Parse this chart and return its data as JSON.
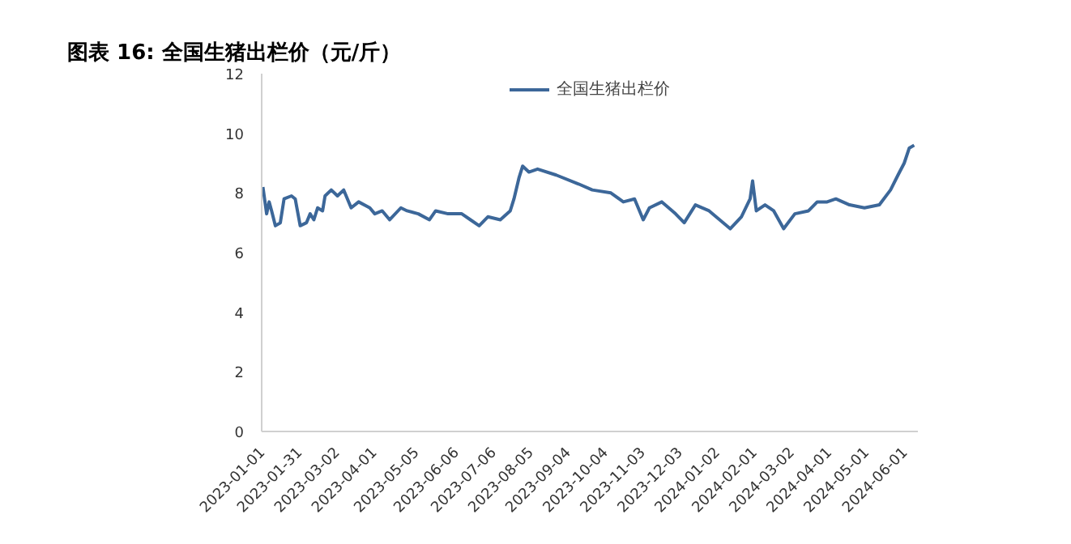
{
  "chart_data": {
    "type": "line",
    "title": "图表 16:  全国生猪出栏价（元/斤）",
    "x": [
      "2023-01-02",
      "2023-01-05",
      "2023-01-07",
      "2023-01-09",
      "2023-01-12",
      "2023-01-16",
      "2023-01-19",
      "2023-01-25",
      "2023-01-28",
      "2023-02-01",
      "2023-02-06",
      "2023-02-09",
      "2023-02-12",
      "2023-02-15",
      "2023-02-19",
      "2023-02-21",
      "2023-02-26",
      "2023-03-03",
      "2023-03-08",
      "2023-03-14",
      "2023-03-20",
      "2023-03-29",
      "2023-04-02",
      "2023-04-08",
      "2023-04-14",
      "2023-04-23",
      "2023-04-28",
      "2023-05-07",
      "2023-05-16",
      "2023-05-21",
      "2023-05-31",
      "2023-06-11",
      "2023-06-18",
      "2023-06-25",
      "2023-07-02",
      "2023-07-12",
      "2023-07-20",
      "2023-07-23",
      "2023-07-27",
      "2023-07-30",
      "2023-08-04",
      "2023-08-11",
      "2023-08-26",
      "2023-09-13",
      "2023-09-24",
      "2023-10-09",
      "2023-10-19",
      "2023-10-28",
      "2023-11-04",
      "2023-11-09",
      "2023-11-19",
      "2023-11-30",
      "2023-12-07",
      "2023-12-16",
      "2023-12-27",
      "2024-01-13",
      "2024-01-22",
      "2024-01-29",
      "2024-01-31",
      "2024-02-03",
      "2024-02-10",
      "2024-02-17",
      "2024-02-25",
      "2024-03-05",
      "2024-03-16",
      "2024-03-23",
      "2024-03-31",
      "2024-04-07",
      "2024-04-18",
      "2024-04-30",
      "2024-05-12",
      "2024-05-21",
      "2024-05-27",
      "2024-06-01",
      "2024-06-05",
      "2024-06-09"
    ],
    "series": [
      {
        "name": "全国生猪出栏价",
        "color": "#3c6799",
        "values": [
          8.2,
          7.3,
          7.7,
          7.4,
          6.9,
          7.0,
          7.8,
          7.9,
          7.8,
          6.9,
          7.0,
          7.3,
          7.1,
          7.5,
          7.4,
          7.9,
          8.1,
          7.9,
          8.1,
          7.5,
          7.7,
          7.5,
          7.3,
          7.4,
          7.1,
          7.5,
          7.4,
          7.3,
          7.1,
          7.4,
          7.3,
          7.3,
          7.1,
          6.9,
          7.2,
          7.1,
          7.4,
          7.8,
          8.5,
          8.9,
          8.7,
          8.8,
          8.6,
          8.3,
          8.1,
          8.0,
          7.7,
          7.8,
          7.1,
          7.5,
          7.7,
          7.3,
          7.0,
          7.6,
          7.4,
          6.8,
          7.2,
          7.8,
          8.4,
          7.4,
          7.6,
          7.4,
          6.8,
          7.3,
          7.4,
          7.7,
          7.7,
          7.8,
          7.6,
          7.5,
          7.6,
          8.1,
          8.6,
          9.0,
          9.5,
          9.6
        ]
      }
    ],
    "xlim": [
      "2023-01-01",
      "2024-06-12"
    ],
    "xticks": [
      "2023-01-01",
      "2023-01-31",
      "2023-03-02",
      "2023-04-01",
      "2023-05-05",
      "2023-06-06",
      "2023-07-06",
      "2023-08-05",
      "2023-09-04",
      "2023-10-04",
      "2023-11-03",
      "2023-12-03",
      "2024-01-02",
      "2024-02-01",
      "2024-03-02",
      "2024-04-01",
      "2024-05-01",
      "2024-06-01"
    ],
    "ylim": [
      0,
      12
    ],
    "yticks": [
      0,
      2,
      4,
      6,
      8,
      10,
      12
    ],
    "grid": false,
    "legend": "top"
  }
}
